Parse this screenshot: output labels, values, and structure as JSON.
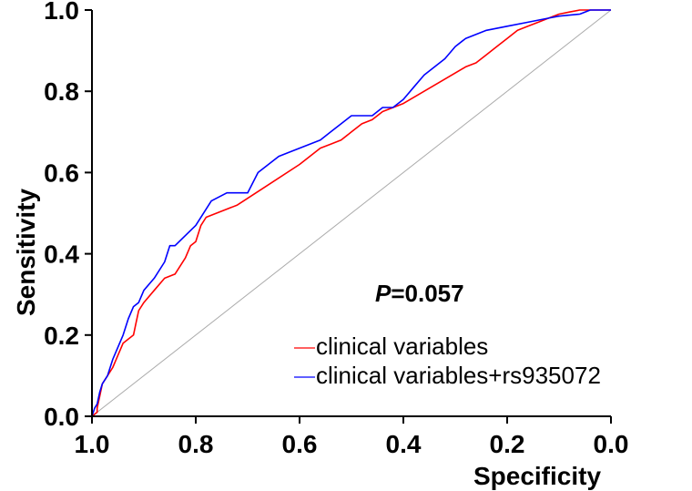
{
  "chart_data": {
    "type": "line",
    "title": "",
    "xlabel": "Specificity",
    "ylabel": "Sensitivity",
    "xlim": [
      1.0,
      0.0
    ],
    "ylim": [
      0.0,
      1.0
    ],
    "x_reversed": true,
    "x_ticks": [
      "1.0",
      "0.8",
      "0.6",
      "0.4",
      "0.2",
      "0.0"
    ],
    "y_ticks": [
      "0.0",
      "0.2",
      "0.4",
      "0.6",
      "0.8",
      "1.0"
    ],
    "grid": false,
    "legend_position": "bottom-right",
    "annotation": {
      "italic": "P",
      "rest": "=0.057"
    },
    "reference_line": {
      "from": [
        1.0,
        0.0
      ],
      "to": [
        0.0,
        1.0
      ],
      "color": "#aaaaaa"
    },
    "series": [
      {
        "name": "clinical variables",
        "color": "#ff0000",
        "points": [
          [
            1.0,
            0.0
          ],
          [
            0.99,
            0.01
          ],
          [
            0.99,
            0.02
          ],
          [
            0.985,
            0.05
          ],
          [
            0.98,
            0.08
          ],
          [
            0.97,
            0.1
          ],
          [
            0.96,
            0.12
          ],
          [
            0.95,
            0.15
          ],
          [
            0.94,
            0.18
          ],
          [
            0.92,
            0.2
          ],
          [
            0.915,
            0.23
          ],
          [
            0.91,
            0.26
          ],
          [
            0.9,
            0.28
          ],
          [
            0.88,
            0.31
          ],
          [
            0.86,
            0.34
          ],
          [
            0.84,
            0.35
          ],
          [
            0.82,
            0.39
          ],
          [
            0.81,
            0.42
          ],
          [
            0.8,
            0.43
          ],
          [
            0.79,
            0.47
          ],
          [
            0.78,
            0.49
          ],
          [
            0.72,
            0.52
          ],
          [
            0.66,
            0.57
          ],
          [
            0.6,
            0.62
          ],
          [
            0.56,
            0.66
          ],
          [
            0.54,
            0.67
          ],
          [
            0.52,
            0.68
          ],
          [
            0.5,
            0.7
          ],
          [
            0.48,
            0.72
          ],
          [
            0.46,
            0.73
          ],
          [
            0.44,
            0.75
          ],
          [
            0.4,
            0.77
          ],
          [
            0.36,
            0.8
          ],
          [
            0.32,
            0.83
          ],
          [
            0.28,
            0.86
          ],
          [
            0.26,
            0.87
          ],
          [
            0.24,
            0.89
          ],
          [
            0.22,
            0.91
          ],
          [
            0.2,
            0.93
          ],
          [
            0.18,
            0.95
          ],
          [
            0.16,
            0.96
          ],
          [
            0.14,
            0.97
          ],
          [
            0.12,
            0.98
          ],
          [
            0.1,
            0.99
          ],
          [
            0.08,
            0.995
          ],
          [
            0.06,
            1.0
          ],
          [
            0.0,
            1.0
          ]
        ]
      },
      {
        "name": "clinical variables+rs935072",
        "color": "#0000ff",
        "points": [
          [
            1.0,
            0.0
          ],
          [
            0.995,
            0.02
          ],
          [
            0.99,
            0.03
          ],
          [
            0.985,
            0.06
          ],
          [
            0.98,
            0.08
          ],
          [
            0.97,
            0.1
          ],
          [
            0.96,
            0.14
          ],
          [
            0.95,
            0.17
          ],
          [
            0.94,
            0.2
          ],
          [
            0.93,
            0.24
          ],
          [
            0.92,
            0.27
          ],
          [
            0.91,
            0.28
          ],
          [
            0.9,
            0.31
          ],
          [
            0.88,
            0.34
          ],
          [
            0.86,
            0.38
          ],
          [
            0.85,
            0.42
          ],
          [
            0.84,
            0.42
          ],
          [
            0.8,
            0.47
          ],
          [
            0.77,
            0.53
          ],
          [
            0.74,
            0.55
          ],
          [
            0.7,
            0.55
          ],
          [
            0.68,
            0.6
          ],
          [
            0.66,
            0.62
          ],
          [
            0.64,
            0.64
          ],
          [
            0.62,
            0.65
          ],
          [
            0.56,
            0.68
          ],
          [
            0.54,
            0.7
          ],
          [
            0.5,
            0.74
          ],
          [
            0.46,
            0.74
          ],
          [
            0.44,
            0.76
          ],
          [
            0.42,
            0.76
          ],
          [
            0.4,
            0.78
          ],
          [
            0.38,
            0.81
          ],
          [
            0.36,
            0.84
          ],
          [
            0.32,
            0.88
          ],
          [
            0.3,
            0.91
          ],
          [
            0.28,
            0.93
          ],
          [
            0.24,
            0.95
          ],
          [
            0.2,
            0.96
          ],
          [
            0.16,
            0.97
          ],
          [
            0.12,
            0.98
          ],
          [
            0.1,
            0.985
          ],
          [
            0.06,
            0.99
          ],
          [
            0.04,
            1.0
          ],
          [
            0.0,
            1.0
          ]
        ]
      }
    ]
  }
}
